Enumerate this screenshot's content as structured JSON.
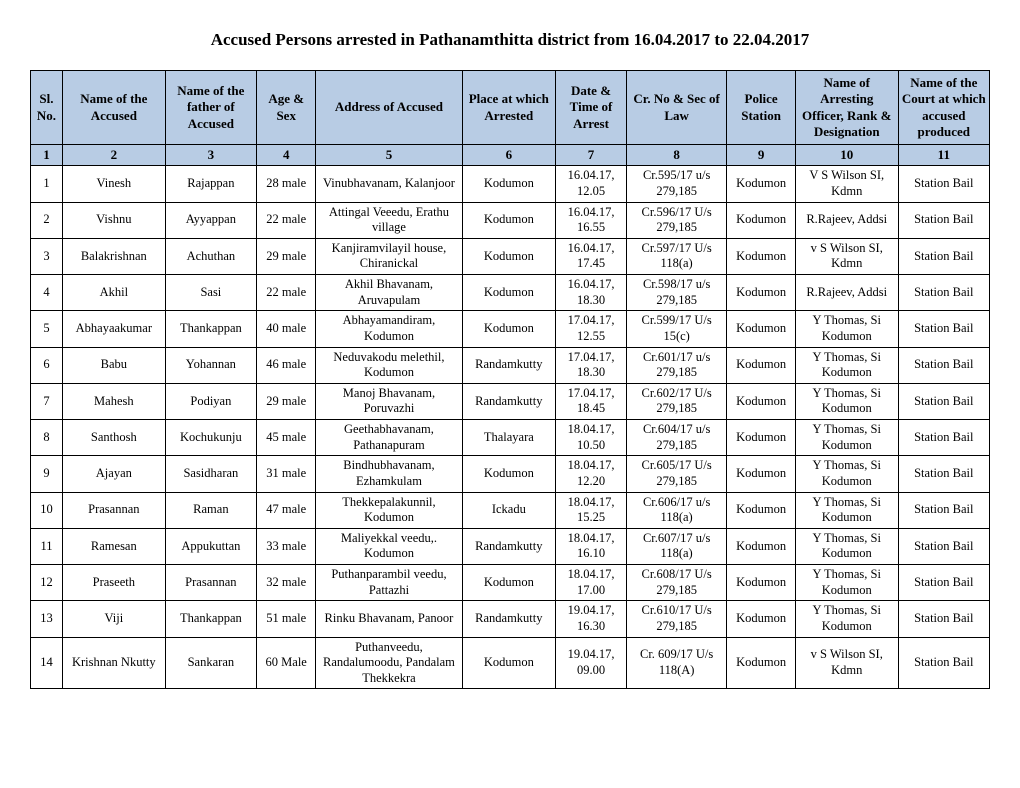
{
  "title": "Accused Persons arrested in   Pathanamthitta   district from  16.04.2017 to 22.04.2017",
  "columns": [
    "Sl. No.",
    "Name of the Accused",
    "Name of the father of Accused",
    "Age & Sex",
    "Address of Accused",
    "Place at which Arrested",
    "Date & Time of Arrest",
    "Cr. No & Sec of Law",
    "Police Station",
    "Name of Arresting Officer, Rank & Designation",
    "Name of the Court at which accused produced"
  ],
  "numrow": [
    "1",
    "2",
    "3",
    "4",
    "5",
    "6",
    "7",
    "8",
    "9",
    "10",
    "11"
  ],
  "rows": [
    {
      "sl": "1",
      "name": "Vinesh",
      "father": "Rajappan",
      "age": "28 male",
      "addr": "Vinubhavanam, Kalanjoor",
      "place": "Kodumon",
      "date": "16.04.17, 12.05",
      "cr": "Cr.595/17 u/s 279,185",
      "ps": "Kodumon",
      "off": "V S Wilson SI, Kdmn",
      "court": "Station Bail"
    },
    {
      "sl": "2",
      "name": "Vishnu",
      "father": "Ayyappan",
      "age": "22 male",
      "addr": "Attingal Veeedu, Erathu village",
      "place": "Kodumon",
      "date": "16.04.17, 16.55",
      "cr": "Cr.596/17 U/s 279,185",
      "ps": "Kodumon",
      "off": "R.Rajeev, Addsi",
      "court": "Station Bail"
    },
    {
      "sl": "3",
      "name": "Balakrishnan",
      "father": "Achuthan",
      "age": "29 male",
      "addr": "Kanjiramvilayil house, Chiranickal",
      "place": "Kodumon",
      "date": "16.04.17, 17.45",
      "cr": "Cr.597/17 U/s 118(a)",
      "ps": "Kodumon",
      "off": "v S Wilson SI, Kdmn",
      "court": "Station Bail"
    },
    {
      "sl": "4",
      "name": "Akhil",
      "father": "Sasi",
      "age": "22 male",
      "addr": "Akhil Bhavanam, Aruvapulam",
      "place": "Kodumon",
      "date": "16.04.17, 18.30",
      "cr": "Cr.598/17 u/s 279,185",
      "ps": "Kodumon",
      "off": "R.Rajeev, Addsi",
      "court": "Station Bail"
    },
    {
      "sl": "5",
      "name": "Abhayaakumar",
      "father": "Thankappan",
      "age": "40 male",
      "addr": "Abhayamandiram, Kodumon",
      "place": "Kodumon",
      "date": "17.04.17, 12.55",
      "cr": "Cr.599/17 U/s 15(c)",
      "ps": "Kodumon",
      "off": "Y Thomas, Si Kodumon",
      "court": "Station Bail"
    },
    {
      "sl": "6",
      "name": "Babu",
      "father": "Yohannan",
      "age": "46 male",
      "addr": "Neduvakodu melethil, Kodumon",
      "place": "Randamkutty",
      "date": "17.04.17, 18.30",
      "cr": "Cr.601/17 u/s 279,185",
      "ps": "Kodumon",
      "off": "Y Thomas, Si Kodumon",
      "court": "Station Bail"
    },
    {
      "sl": "7",
      "name": "Mahesh",
      "father": "Podiyan",
      "age": "29 male",
      "addr": "Manoj Bhavanam, Poruvazhi",
      "place": "Randamkutty",
      "date": "17.04.17, 18.45",
      "cr": "Cr.602/17 U/s 279,185",
      "ps": "Kodumon",
      "off": "Y Thomas, Si Kodumon",
      "court": "Station Bail"
    },
    {
      "sl": "8",
      "name": "Santhosh",
      "father": "Kochukunju",
      "age": "45 male",
      "addr": "Geethabhavanam, Pathanapuram",
      "place": "Thalayara",
      "date": "18.04.17, 10.50",
      "cr": "Cr.604/17 u/s 279,185",
      "ps": "Kodumon",
      "off": "Y Thomas, Si Kodumon",
      "court": "Station Bail"
    },
    {
      "sl": "9",
      "name": "Ajayan",
      "father": "Sasidharan",
      "age": "31 male",
      "addr": "Bindhubhavanam, Ezhamkulam",
      "place": "Kodumon",
      "date": "18.04.17, 12.20",
      "cr": "Cr.605/17 U/s 279,185",
      "ps": "Kodumon",
      "off": "Y Thomas, Si Kodumon",
      "court": "Station Bail"
    },
    {
      "sl": "10",
      "name": "Prasannan",
      "father": "Raman",
      "age": "47 male",
      "addr": "Thekkepalakunnil, Kodumon",
      "place": "Ickadu",
      "date": "18.04.17, 15.25",
      "cr": "Cr.606/17 u/s 118(a)",
      "ps": "Kodumon",
      "off": "Y Thomas, Si Kodumon",
      "court": "Station Bail"
    },
    {
      "sl": "11",
      "name": "Ramesan",
      "father": "Appukuttan",
      "age": "33 male",
      "addr": "Maliyekkal veedu,. Kodumon",
      "place": "Randamkutty",
      "date": "18.04.17, 16.10",
      "cr": "Cr.607/17 u/s 118(a)",
      "ps": "Kodumon",
      "off": "Y Thomas, Si Kodumon",
      "court": "Station Bail"
    },
    {
      "sl": "12",
      "name": "Praseeth",
      "father": "Prasannan",
      "age": "32 male",
      "addr": "Puthanparambil veedu, Pattazhi",
      "place": "Kodumon",
      "date": "18.04.17, 17.00",
      "cr": "Cr.608/17 U/s 279,185",
      "ps": "Kodumon",
      "off": "Y Thomas, Si Kodumon",
      "court": "Station Bail"
    },
    {
      "sl": "13",
      "name": "Viji",
      "father": "Thankappan",
      "age": "51 male",
      "addr": "Rinku Bhavanam, Panoor",
      "place": "Randamkutty",
      "date": "19.04.17, 16.30",
      "cr": "Cr.610/17 U/s 279,185",
      "ps": "Kodumon",
      "off": "Y Thomas, Si Kodumon",
      "court": "Station Bail"
    },
    {
      "sl": "14",
      "name": "Krishnan Nkutty",
      "father": "Sankaran",
      "age": "60 Male",
      "addr": "Puthanveedu, Randalumoodu, Pandalam Thekkekra",
      "place": "Kodumon",
      "date": "19.04.17, 09.00",
      "cr": "Cr. 609/17 U/s 118(A)",
      "ps": "Kodumon",
      "off": "v S Wilson SI, Kdmn",
      "court": "Station Bail"
    }
  ]
}
